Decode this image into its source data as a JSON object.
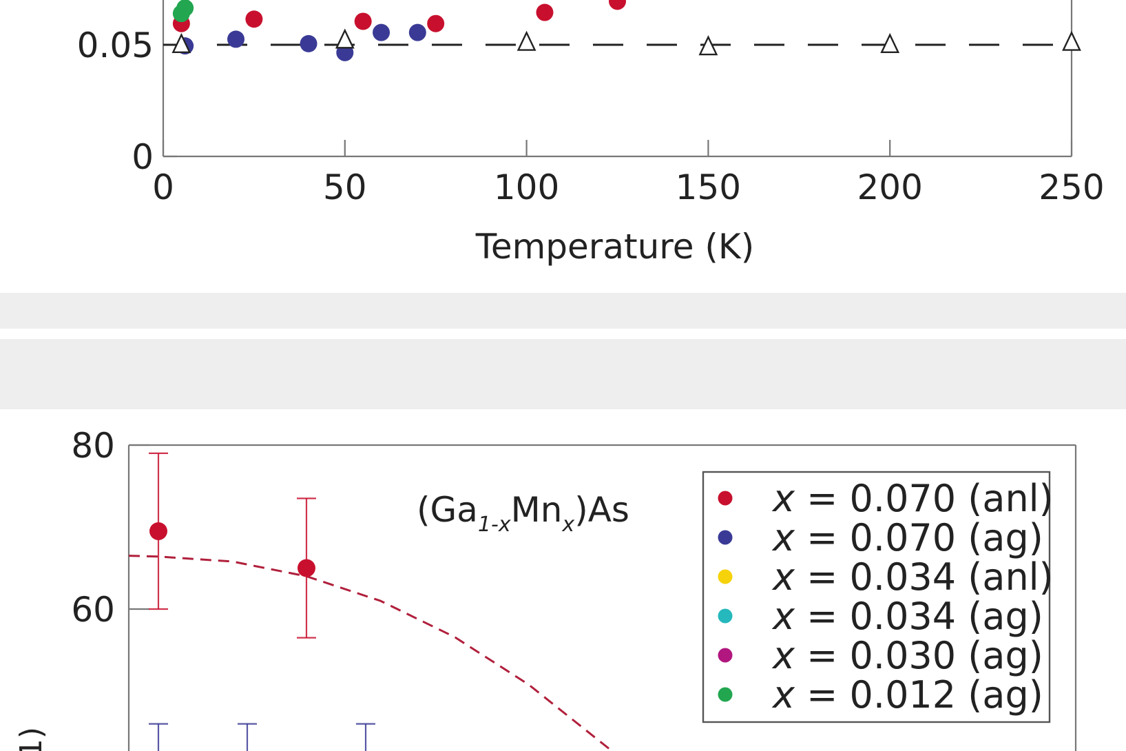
{
  "chart_data": [
    {
      "type": "scatter",
      "xlabel": "Temperature (K)",
      "ylabel": "",
      "xlim": [
        0,
        250
      ],
      "ylim": [
        0,
        0.1
      ],
      "x_ticks": [
        "0",
        "50",
        "100",
        "150",
        "200",
        "250"
      ],
      "y_ticks": [
        "0",
        "0.05"
      ],
      "grid": false,
      "series": [
        {
          "color": "#c8102e",
          "marker": "circle",
          "x": [
            5,
            25,
            55,
            75,
            105,
            125
          ],
          "y": [
            0.0595,
            0.0615,
            0.0605,
            0.0595,
            0.0645,
            0.0695
          ]
        },
        {
          "color": "#3a3a96",
          "marker": "circle",
          "x": [
            6,
            20,
            40,
            50,
            60,
            70
          ],
          "y": [
            0.0495,
            0.0525,
            0.0505,
            0.0465,
            0.0555,
            0.0555
          ]
        },
        {
          "color": "#22a650",
          "marker": "circle",
          "x": [
            5,
            6
          ],
          "y": [
            0.064,
            0.0665
          ]
        },
        {
          "color": "#ffffff",
          "marker": "triangle",
          "x": [
            5,
            50,
            100,
            150,
            200,
            250
          ],
          "y": [
            0.05,
            0.052,
            0.051,
            0.049,
            0.05,
            0.051
          ]
        }
      ],
      "reference_line": {
        "y": 0.05,
        "style": "dashed",
        "color": "#222222"
      }
    },
    {
      "type": "scatter",
      "title": "(Ga1-xMnx)As",
      "xlabel": "",
      "ylabel": "",
      "ylim": [
        40,
        80
      ],
      "y_ticks": [
        "60",
        "80"
      ],
      "grid": false,
      "legend_position": "top-right",
      "series": [
        {
          "name": "x = 0.070 (anl)",
          "color": "#c8102e",
          "x": [
            0,
            1
          ],
          "y": [
            69.5,
            65.0
          ],
          "err": [
            9.5,
            8.5
          ]
        },
        {
          "name": "x = 0.070 (ag)",
          "color": "#3a3a96",
          "x": [
            0,
            0.6,
            1.4
          ],
          "y": [
            40,
            40,
            40
          ],
          "err": [
            6,
            6,
            6
          ]
        },
        {
          "name": "x = 0.034 (anl)",
          "color": "#f6d20a",
          "x": [],
          "y": []
        },
        {
          "name": "x = 0.034 (ag)",
          "color": "#25b8bd",
          "x": [],
          "y": []
        },
        {
          "name": "x = 0.030 (ag)",
          "color": "#b1177f",
          "x": [],
          "y": []
        },
        {
          "name": "x = 0.012 (ag)",
          "color": "#22a650",
          "x": [],
          "y": []
        }
      ],
      "fit_curve": {
        "style": "dashed",
        "color": "#b0203c",
        "x": [
          -0.2,
          0,
          0.5,
          1,
          1.5,
          2,
          2.5,
          3.07
        ],
        "y": [
          66.5,
          66.4,
          65.8,
          64.0,
          61.0,
          56.6,
          50.8,
          42.6
        ]
      }
    }
  ]
}
